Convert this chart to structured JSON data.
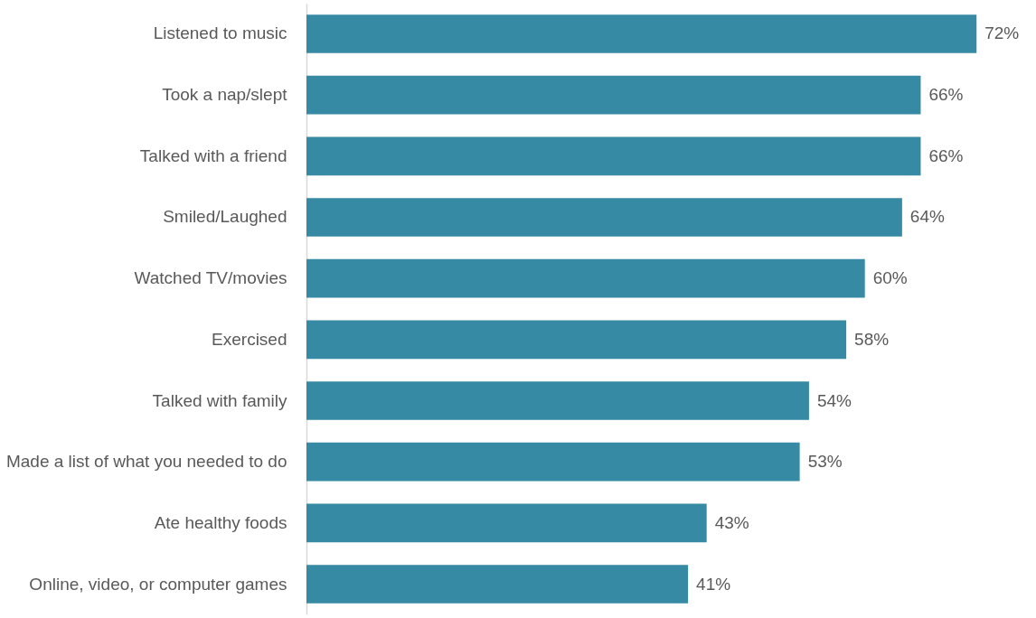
{
  "chart_data": {
    "type": "bar",
    "orientation": "horizontal",
    "categories": [
      "Listened to music",
      "Took a nap/slept",
      "Talked with a friend",
      "Smiled/Laughed",
      "Watched TV/movies",
      "Exercised",
      "Talked with family",
      "Made a list of what you needed to do",
      "Ate healthy foods",
      "Online, video, or computer games"
    ],
    "values": [
      72,
      66,
      66,
      64,
      60,
      58,
      54,
      53,
      43,
      41
    ],
    "value_labels": [
      "72%",
      "66%",
      "66%",
      "64%",
      "60%",
      "58%",
      "54%",
      "53%",
      "43%",
      "41%"
    ],
    "color": "#368aa4",
    "xlim": [
      0,
      78
    ],
    "tick_labels": "y"
  }
}
